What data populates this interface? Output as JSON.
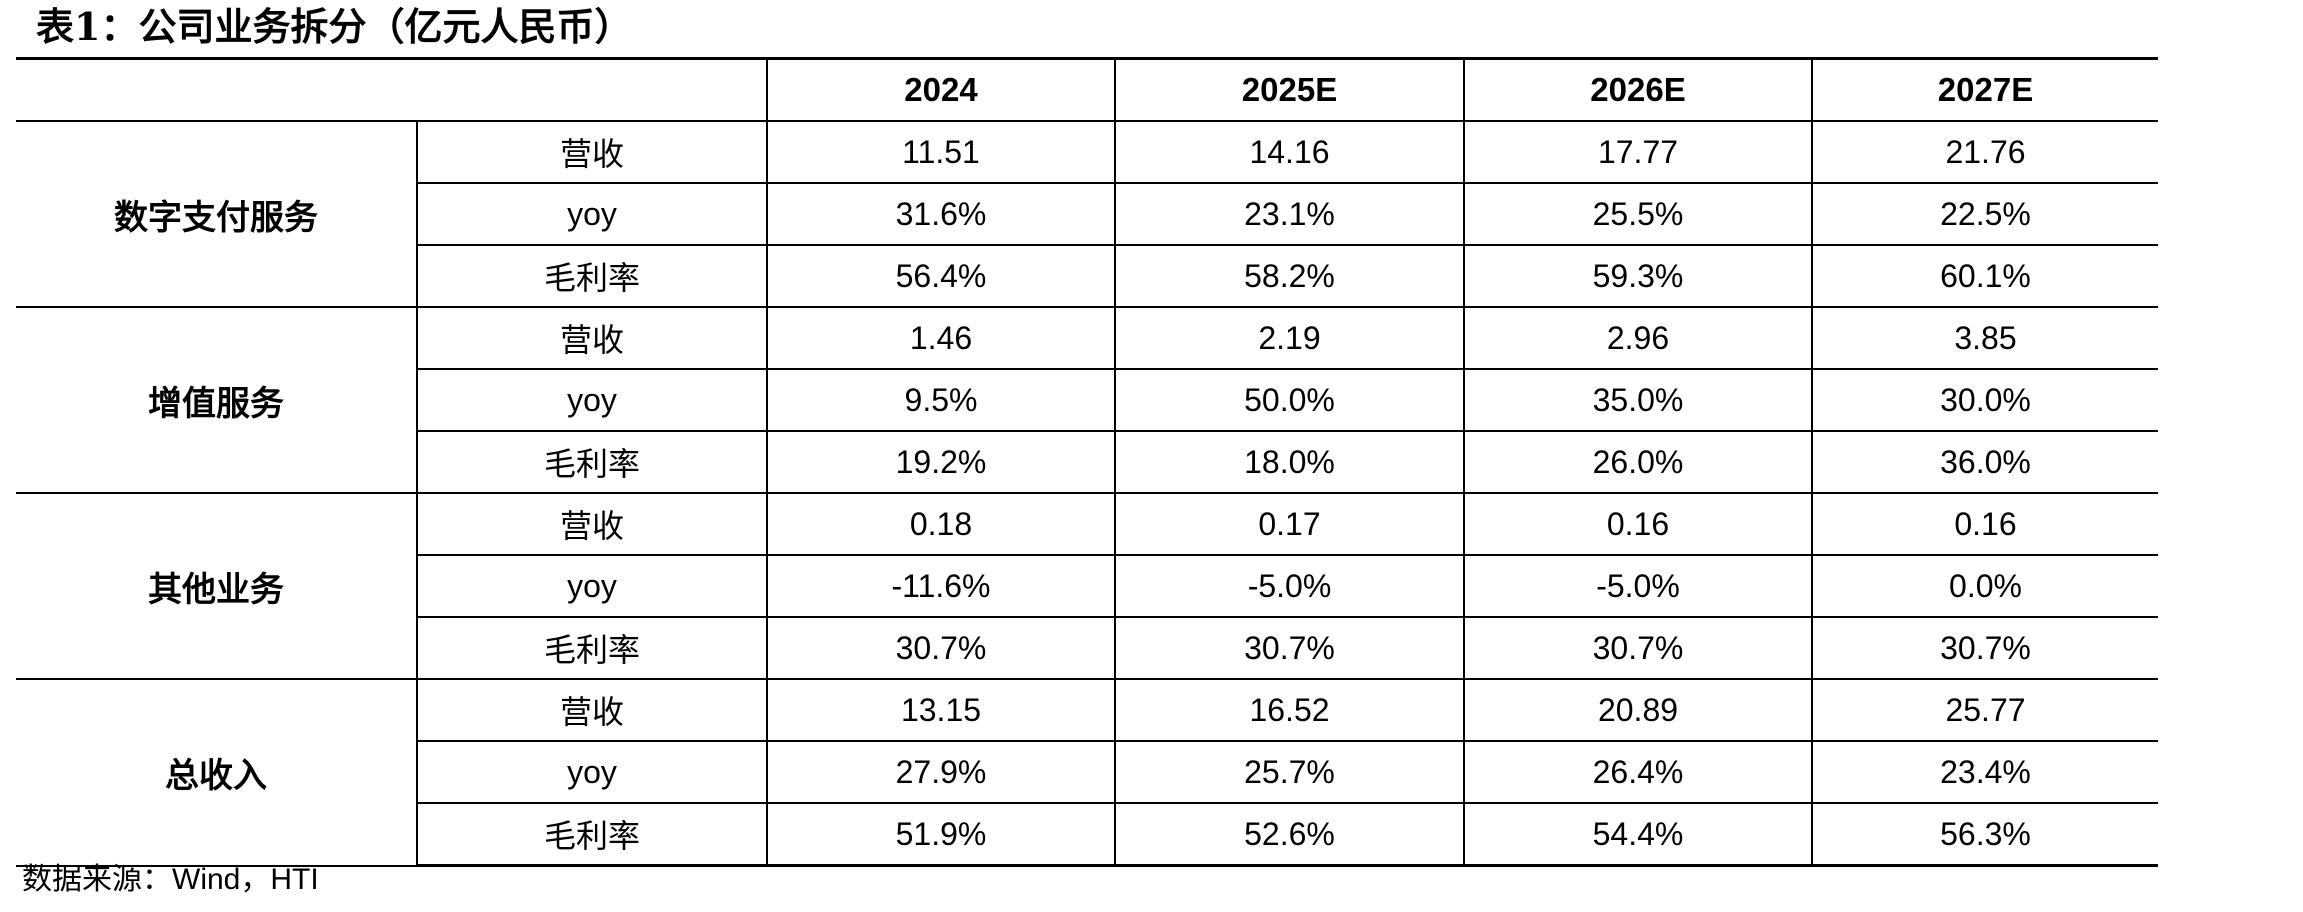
{
  "title": "表1：公司业务拆分（亿元人民币）",
  "table": {
    "columns": [
      "2024",
      "2025E",
      "2026E",
      "2027E"
    ],
    "metric_labels": [
      "营收",
      "yoy",
      "毛利率"
    ],
    "groups": [
      {
        "name": "数字支付服务",
        "rows": [
          [
            "11.51",
            "14.16",
            "17.77",
            "21.76"
          ],
          [
            "31.6%",
            "23.1%",
            "25.5%",
            "22.5%"
          ],
          [
            "56.4%",
            "58.2%",
            "59.3%",
            "60.1%"
          ]
        ]
      },
      {
        "name": "增值服务",
        "rows": [
          [
            "1.46",
            "2.19",
            "2.96",
            "3.85"
          ],
          [
            "9.5%",
            "50.0%",
            "35.0%",
            "30.0%"
          ],
          [
            "19.2%",
            "18.0%",
            "26.0%",
            "36.0%"
          ]
        ]
      },
      {
        "name": "其他业务",
        "rows": [
          [
            "0.18",
            "0.17",
            "0.16",
            "0.16"
          ],
          [
            "-11.6%",
            "-5.0%",
            "-5.0%",
            "0.0%"
          ],
          [
            "30.7%",
            "30.7%",
            "30.7%",
            "30.7%"
          ]
        ]
      },
      {
        "name": "总收入",
        "rows": [
          [
            "13.15",
            "16.52",
            "20.89",
            "25.77"
          ],
          [
            "27.9%",
            "25.7%",
            "26.4%",
            "23.4%"
          ],
          [
            "51.9%",
            "52.6%",
            "54.4%",
            "56.3%"
          ]
        ]
      }
    ]
  },
  "source": "数据来源：Wind，HTI"
}
